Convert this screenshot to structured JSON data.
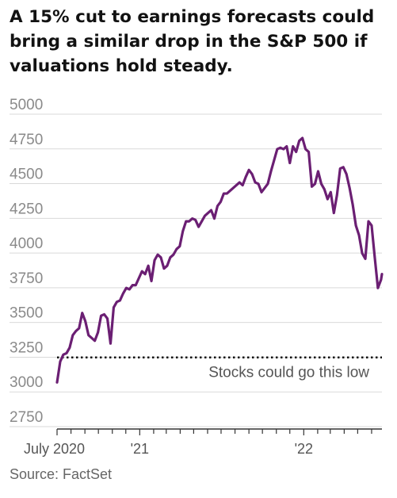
{
  "chart_data": {
    "type": "line",
    "title": "A 15% cut to earnings forecasts could bring a similar drop in the S&P 500 if valuations hold steady.",
    "source": "Source: FactSet",
    "ylim": [
      2750,
      5000
    ],
    "yticks": [
      2750,
      3000,
      3250,
      3500,
      3750,
      4000,
      4250,
      4500,
      4750,
      5000
    ],
    "ytick_labels": [
      "2750",
      "3000",
      "3250",
      "3500",
      "3750",
      "4000",
      "4250",
      "4500",
      "4750",
      "5000"
    ],
    "xlim": [
      "2020-07-01",
      "2022-06-24"
    ],
    "xtick_labels": [
      "July 2020",
      "'21",
      "'22"
    ],
    "xtick_dates": [
      "2020-07-01",
      "2021-01-01",
      "2022-01-01"
    ],
    "grid": "horizontal",
    "reference_line": {
      "value": 3180,
      "label": "Stocks could go this low",
      "style": "dotted"
    },
    "series": [
      {
        "color": "#6b1f73",
        "points": [
          [
            "2020-07-01",
            3000
          ],
          [
            "2020-07-08",
            3150
          ],
          [
            "2020-07-15",
            3200
          ],
          [
            "2020-07-22",
            3210
          ],
          [
            "2020-07-29",
            3250
          ],
          [
            "2020-08-05",
            3340
          ],
          [
            "2020-08-12",
            3370
          ],
          [
            "2020-08-19",
            3390
          ],
          [
            "2020-08-26",
            3500
          ],
          [
            "2020-09-02",
            3440
          ],
          [
            "2020-09-09",
            3340
          ],
          [
            "2020-09-16",
            3320
          ],
          [
            "2020-09-23",
            3300
          ],
          [
            "2020-09-30",
            3360
          ],
          [
            "2020-10-07",
            3480
          ],
          [
            "2020-10-14",
            3490
          ],
          [
            "2020-10-21",
            3460
          ],
          [
            "2020-10-28",
            3280
          ],
          [
            "2020-11-04",
            3540
          ],
          [
            "2020-11-11",
            3580
          ],
          [
            "2020-11-18",
            3590
          ],
          [
            "2020-11-25",
            3640
          ],
          [
            "2020-12-02",
            3680
          ],
          [
            "2020-12-09",
            3670
          ],
          [
            "2020-12-16",
            3700
          ],
          [
            "2020-12-23",
            3700
          ],
          [
            "2020-12-30",
            3750
          ],
          [
            "2021-01-06",
            3800
          ],
          [
            "2021-01-13",
            3780
          ],
          [
            "2021-01-20",
            3840
          ],
          [
            "2021-01-27",
            3730
          ],
          [
            "2021-02-03",
            3880
          ],
          [
            "2021-02-10",
            3920
          ],
          [
            "2021-02-17",
            3900
          ],
          [
            "2021-02-24",
            3820
          ],
          [
            "2021-03-03",
            3840
          ],
          [
            "2021-03-10",
            3900
          ],
          [
            "2021-03-17",
            3920
          ],
          [
            "2021-03-24",
            3960
          ],
          [
            "2021-03-31",
            3980
          ],
          [
            "2021-04-07",
            4090
          ],
          [
            "2021-04-14",
            4160
          ],
          [
            "2021-04-21",
            4160
          ],
          [
            "2021-04-28",
            4180
          ],
          [
            "2021-05-05",
            4170
          ],
          [
            "2021-05-12",
            4120
          ],
          [
            "2021-05-19",
            4160
          ],
          [
            "2021-05-26",
            4200
          ],
          [
            "2021-06-02",
            4220
          ],
          [
            "2021-06-09",
            4240
          ],
          [
            "2021-06-16",
            4180
          ],
          [
            "2021-06-23",
            4270
          ],
          [
            "2021-06-30",
            4300
          ],
          [
            "2021-07-07",
            4360
          ],
          [
            "2021-07-14",
            4360
          ],
          [
            "2021-07-21",
            4380
          ],
          [
            "2021-07-28",
            4400
          ],
          [
            "2021-08-04",
            4420
          ],
          [
            "2021-08-11",
            4440
          ],
          [
            "2021-08-18",
            4420
          ],
          [
            "2021-08-25",
            4480
          ],
          [
            "2021-09-01",
            4530
          ],
          [
            "2021-09-08",
            4500
          ],
          [
            "2021-09-15",
            4440
          ],
          [
            "2021-09-22",
            4430
          ],
          [
            "2021-09-29",
            4370
          ],
          [
            "2021-10-06",
            4400
          ],
          [
            "2021-10-13",
            4430
          ],
          [
            "2021-10-20",
            4520
          ],
          [
            "2021-10-27",
            4600
          ],
          [
            "2021-11-03",
            4680
          ],
          [
            "2021-11-10",
            4690
          ],
          [
            "2021-11-17",
            4680
          ],
          [
            "2021-11-24",
            4700
          ],
          [
            "2021-12-01",
            4580
          ],
          [
            "2021-12-08",
            4700
          ],
          [
            "2021-12-15",
            4660
          ],
          [
            "2021-12-22",
            4740
          ],
          [
            "2021-12-29",
            4760
          ],
          [
            "2022-01-05",
            4680
          ],
          [
            "2022-01-12",
            4660
          ],
          [
            "2022-01-19",
            4410
          ],
          [
            "2022-01-26",
            4430
          ],
          [
            "2022-02-02",
            4520
          ],
          [
            "2022-02-09",
            4430
          ],
          [
            "2022-02-16",
            4390
          ],
          [
            "2022-02-23",
            4320
          ],
          [
            "2022-03-02",
            4370
          ],
          [
            "2022-03-09",
            4220
          ],
          [
            "2022-03-16",
            4350
          ],
          [
            "2022-03-23",
            4540
          ],
          [
            "2022-03-30",
            4550
          ],
          [
            "2022-04-06",
            4500
          ],
          [
            "2022-04-13",
            4400
          ],
          [
            "2022-04-20",
            4280
          ],
          [
            "2022-04-27",
            4130
          ],
          [
            "2022-05-04",
            4060
          ],
          [
            "2022-05-11",
            3930
          ],
          [
            "2022-05-18",
            3890
          ],
          [
            "2022-05-25",
            4160
          ],
          [
            "2022-06-01",
            4130
          ],
          [
            "2022-06-08",
            3900
          ],
          [
            "2022-06-15",
            3680
          ],
          [
            "2022-06-22",
            3740
          ],
          [
            "2022-06-24",
            3780
          ]
        ]
      }
    ]
  },
  "colors": {
    "line": "#6b1f73",
    "grid": "#d9d9d9",
    "reference_line": "#111111",
    "axis": "#333333"
  }
}
